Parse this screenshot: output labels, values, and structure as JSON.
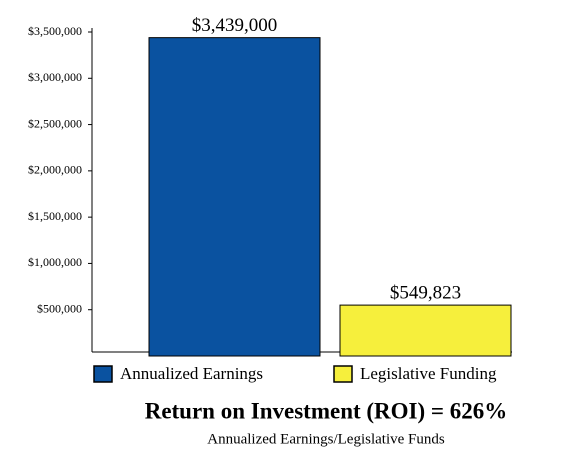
{
  "chart_data": {
    "type": "bar",
    "title": "Return on Investment (ROI) = 626%",
    "subtitle": "Annualized Earnings/Legislative Funds",
    "categories": [
      "Annualized Earnings",
      "Legislative Funding"
    ],
    "values": [
      3439000,
      549823
    ],
    "value_labels": [
      "$3,439,000",
      "$549,823"
    ],
    "colors": [
      "#0a52a0",
      "#f6ef3c"
    ],
    "ylim": [
      0,
      3500000
    ],
    "yticks": [
      {
        "value": 500000,
        "label": "$500,000"
      },
      {
        "value": 1000000,
        "label": "$1,000,000"
      },
      {
        "value": 1500000,
        "label": "$1,500,000"
      },
      {
        "value": 2000000,
        "label": "$2,000,000"
      },
      {
        "value": 2500000,
        "label": "$2,500,000"
      },
      {
        "value": 3000000,
        "label": "$3,000,000"
      },
      {
        "value": 3500000,
        "label": "$3,500,000"
      }
    ],
    "legend": "bottom"
  }
}
